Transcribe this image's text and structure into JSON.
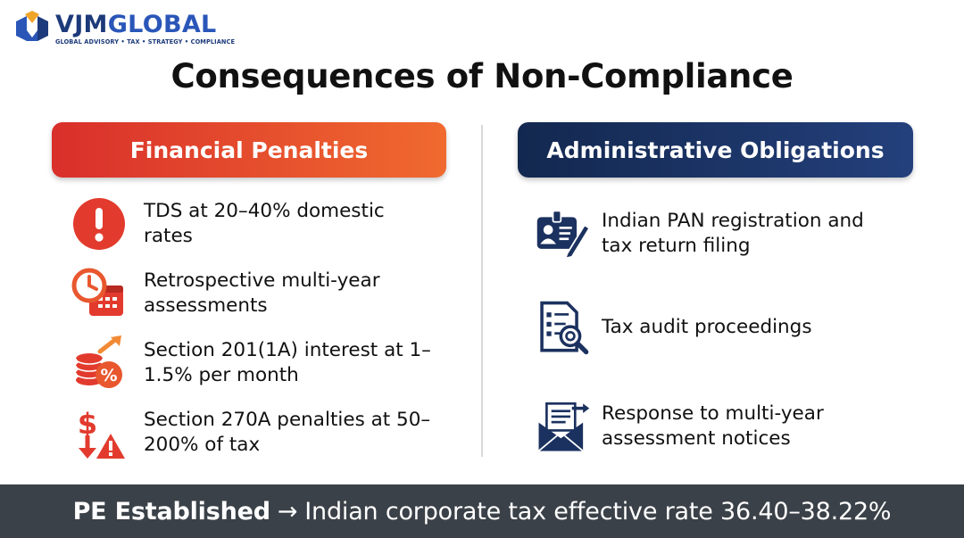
{
  "logo": {
    "name_part1": "VJM",
    "name_part2": "GLOBAL",
    "tagline": "GLOBAL ADVISORY • TAX • STRATEGY • COMPLIANCE"
  },
  "title": "Consequences of Non-Compliance",
  "financial": {
    "heading": "Financial Penalties",
    "items": [
      {
        "icon": "alert-icon",
        "text": "TDS at 20–40% domestic rates"
      },
      {
        "icon": "clock-calendar-icon",
        "text": "Retrospective multi-year assessments"
      },
      {
        "icon": "coins-percent-icon",
        "text": "Section 201(1A) interest at 1–1.5% per month"
      },
      {
        "icon": "dollar-warning-icon",
        "text": "Section 270A penalties at 50–200% of tax"
      }
    ]
  },
  "administrative": {
    "heading": "Administrative Obligations",
    "items": [
      {
        "icon": "id-card-pen-icon",
        "text": "Indian PAN registration and tax return filing"
      },
      {
        "icon": "audit-document-icon",
        "text": "Tax audit proceedings"
      },
      {
        "icon": "envelope-notice-icon",
        "text": "Response to multi-year assessment notices"
      }
    ]
  },
  "footer": {
    "strong": "PE Established",
    "arrow": "→",
    "rest": "Indian corporate tax effective rate 36.40–38.22%"
  },
  "colors": {
    "red": "#e23b2e",
    "orange": "#f06a2f",
    "navy": "#1b315f",
    "footer_bg": "#3b4148"
  }
}
